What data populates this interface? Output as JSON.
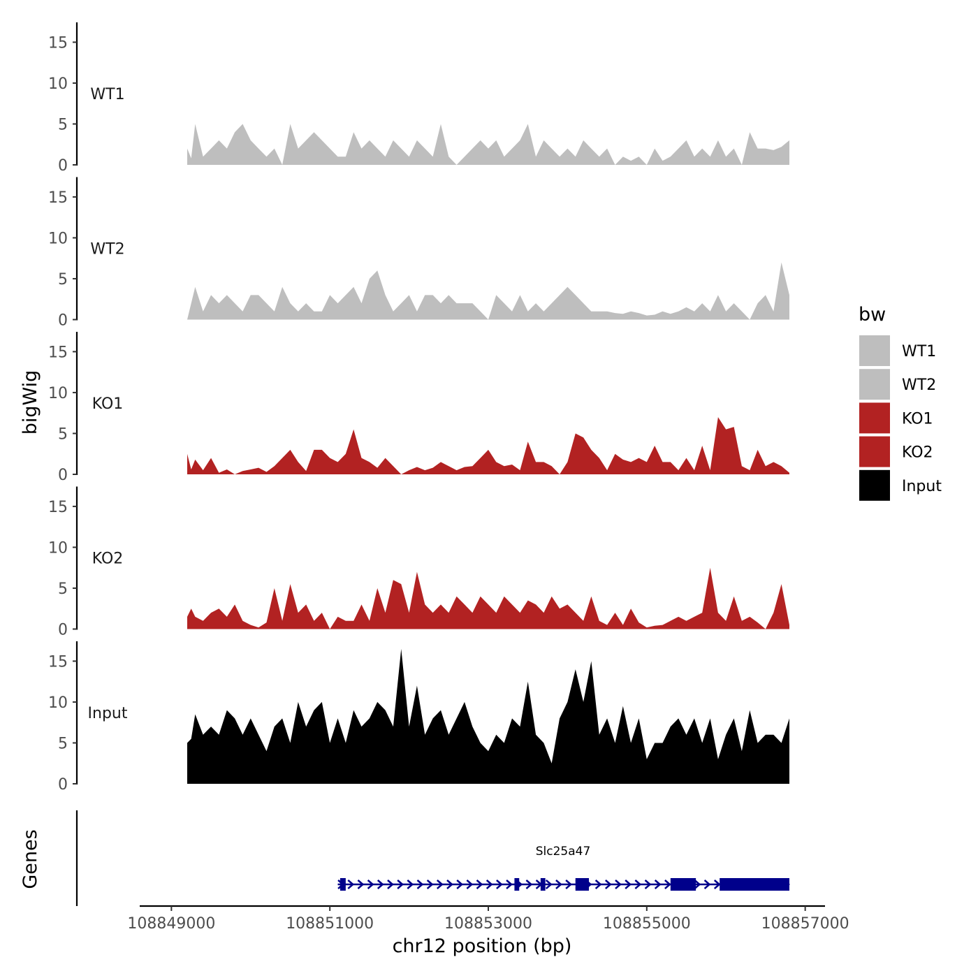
{
  "chart_data": {
    "type": "area",
    "xlabel": "chr12 position (bp)",
    "ylabel": "bigWig",
    "gene_panel_label": "Genes",
    "chromosome": "chr12",
    "xlim": [
      108848600,
      108857250
    ],
    "x_ticks": [
      108849000,
      108851000,
      108853000,
      108855000,
      108857000
    ],
    "x_tick_labels": [
      "108849000",
      "108851000",
      "108853000",
      "108855000",
      "108857000"
    ],
    "ylim": [
      0,
      17
    ],
    "y_ticks": [
      0,
      5,
      10,
      15
    ],
    "y_tick_labels": [
      "0",
      "5",
      "10",
      "15"
    ],
    "legend": {
      "title": "bw",
      "position": "right",
      "entries": [
        {
          "label": "WT1",
          "color": "#bebebe"
        },
        {
          "label": "WT2",
          "color": "#bebebe"
        },
        {
          "label": "KO1",
          "color": "#b22222"
        },
        {
          "label": "KO2",
          "color": "#b22222"
        },
        {
          "label": "Input",
          "color": "#000000"
        }
      ]
    },
    "series": [
      {
        "name": "WT1",
        "color": "#bebebe",
        "x": [
          108849200,
          108849250,
          108849300,
          108849400,
          108849500,
          108849600,
          108849700,
          108849800,
          108849900,
          108850000,
          108850100,
          108850200,
          108850300,
          108850400,
          108850500,
          108850600,
          108850700,
          108850800,
          108850900,
          108851000,
          108851100,
          108851200,
          108851300,
          108851400,
          108851500,
          108851600,
          108851700,
          108851800,
          108851900,
          108852000,
          108852100,
          108852200,
          108852300,
          108852400,
          108852500,
          108852600,
          108852700,
          108852800,
          108852900,
          108853000,
          108853100,
          108853200,
          108853300,
          108853400,
          108853500,
          108853600,
          108853700,
          108853800,
          108853900,
          108854000,
          108854100,
          108854200,
          108854300,
          108854400,
          108854500,
          108854600,
          108854700,
          108854800,
          108854900,
          108855000,
          108855100,
          108855200,
          108855300,
          108855400,
          108855500,
          108855600,
          108855700,
          108855800,
          108855900,
          108856000,
          108856100,
          108856200,
          108856300,
          108856400,
          108856500,
          108856600,
          108856700,
          108856800
        ],
        "values": [
          2,
          0.8,
          5,
          1,
          2,
          3,
          2,
          4,
          5,
          3,
          2,
          1,
          2,
          0,
          5,
          2,
          3,
          4,
          3,
          2,
          1,
          1,
          4,
          2,
          3,
          2,
          1,
          3,
          2,
          1,
          3,
          2,
          1,
          5,
          1,
          0,
          1,
          2,
          3,
          2,
          3,
          1,
          2,
          3,
          5,
          1,
          3,
          2,
          1,
          2,
          1,
          3,
          2,
          1,
          2,
          0,
          1,
          0.5,
          1,
          0,
          2,
          0.5,
          1,
          2,
          3,
          1,
          2,
          1,
          3,
          1,
          2,
          0,
          4,
          2,
          2,
          1.8,
          2.2,
          3
        ]
      },
      {
        "name": "WT2",
        "color": "#bebebe",
        "x": [
          108849200,
          108849250,
          108849300,
          108849400,
          108849500,
          108849600,
          108849700,
          108849800,
          108849900,
          108850000,
          108850100,
          108850200,
          108850300,
          108850400,
          108850500,
          108850600,
          108850700,
          108850800,
          108850900,
          108851000,
          108851100,
          108851200,
          108851300,
          108851400,
          108851500,
          108851600,
          108851700,
          108851800,
          108851900,
          108852000,
          108852100,
          108852200,
          108852300,
          108852400,
          108852500,
          108852600,
          108852700,
          108852800,
          108852900,
          108853000,
          108853100,
          108853200,
          108853300,
          108853400,
          108853500,
          108853600,
          108853700,
          108853800,
          108853900,
          108854000,
          108854100,
          108854200,
          108854300,
          108854400,
          108854500,
          108854600,
          108854700,
          108854800,
          108854900,
          108855000,
          108855100,
          108855200,
          108855300,
          108855400,
          108855500,
          108855600,
          108855700,
          108855800,
          108855900,
          108856000,
          108856100,
          108856200,
          108856300,
          108856400,
          108856500,
          108856600,
          108856700,
          108856800
        ],
        "values": [
          0,
          2,
          4,
          1,
          3,
          2,
          3,
          2,
          1,
          3,
          3,
          2,
          1,
          4,
          2,
          1,
          2,
          1,
          1,
          3,
          2,
          3,
          4,
          2,
          5,
          6,
          3,
          1,
          2,
          3,
          1,
          3,
          3,
          2,
          3,
          2,
          2,
          2,
          1,
          0,
          3,
          2,
          1,
          3,
          1,
          2,
          1,
          2,
          3,
          4,
          3,
          2,
          1,
          1,
          1,
          0.8,
          0.7,
          1,
          0.8,
          0.5,
          0.6,
          1,
          0.7,
          1,
          1.5,
          1,
          2,
          1,
          3,
          1,
          2,
          1,
          0,
          2,
          3,
          1,
          7,
          3
        ]
      },
      {
        "name": "KO1",
        "color": "#b22222",
        "x": [
          108849200,
          108849250,
          108849300,
          108849400,
          108849500,
          108849600,
          108849700,
          108849800,
          108849900,
          108850000,
          108850100,
          108850200,
          108850300,
          108850400,
          108850500,
          108850600,
          108850700,
          108850800,
          108850900,
          108851000,
          108851100,
          108851200,
          108851300,
          108851400,
          108851500,
          108851600,
          108851700,
          108851800,
          108851900,
          108852000,
          108852100,
          108852200,
          108852300,
          108852400,
          108852500,
          108852600,
          108852700,
          108852800,
          108852900,
          108853000,
          108853100,
          108853200,
          108853300,
          108853400,
          108853500,
          108853600,
          108853700,
          108853800,
          108853900,
          108854000,
          108854100,
          108854200,
          108854300,
          108854400,
          108854500,
          108854600,
          108854700,
          108854800,
          108854900,
          108855000,
          108855100,
          108855200,
          108855300,
          108855400,
          108855500,
          108855600,
          108855700,
          108855800,
          108855900,
          108856000,
          108856100,
          108856200,
          108856300,
          108856400,
          108856500,
          108856600,
          108856700,
          108856800
        ],
        "values": [
          2.5,
          0.6,
          1.8,
          0.5,
          2,
          0.2,
          0.6,
          0,
          0.4,
          0.6,
          0.8,
          0.3,
          1,
          2,
          3,
          1.5,
          0.4,
          3,
          3,
          2,
          1.5,
          2.5,
          5.5,
          2,
          1.5,
          0.8,
          2,
          1,
          0,
          0.5,
          0.9,
          0.5,
          0.8,
          1.5,
          1,
          0.5,
          0.9,
          1,
          2,
          3,
          1.5,
          1,
          1.2,
          0.5,
          4,
          1.5,
          1.5,
          1,
          0,
          1.5,
          5,
          4.5,
          3,
          2,
          0.5,
          2.5,
          1.8,
          1.5,
          2,
          1.5,
          3.5,
          1.5,
          1.5,
          0.5,
          2,
          0.5,
          3.5,
          0.5,
          7,
          5.5,
          5.8,
          1,
          0.5,
          3,
          1,
          1.5,
          1,
          0.2
        ]
      },
      {
        "name": "KO2",
        "color": "#b22222",
        "x": [
          108849200,
          108849250,
          108849300,
          108849400,
          108849500,
          108849600,
          108849700,
          108849800,
          108849900,
          108850000,
          108850100,
          108850200,
          108850300,
          108850400,
          108850500,
          108850600,
          108850700,
          108850800,
          108850900,
          108851000,
          108851100,
          108851200,
          108851300,
          108851400,
          108851500,
          108851600,
          108851700,
          108851800,
          108851900,
          108852000,
          108852100,
          108852200,
          108852300,
          108852400,
          108852500,
          108852600,
          108852700,
          108852800,
          108852900,
          108853000,
          108853100,
          108853200,
          108853300,
          108853400,
          108853500,
          108853600,
          108853700,
          108853800,
          108853900,
          108854000,
          108854100,
          108854200,
          108854300,
          108854400,
          108854500,
          108854600,
          108854700,
          108854800,
          108854900,
          108855000,
          108855100,
          108855200,
          108855300,
          108855400,
          108855500,
          108855600,
          108855700,
          108855800,
          108855900,
          108856000,
          108856100,
          108856200,
          108856300,
          108856400,
          108856500,
          108856600,
          108856700,
          108856800
        ],
        "values": [
          1.5,
          2.5,
          1.5,
          1,
          2,
          2.5,
          1.5,
          3,
          1,
          0.5,
          0.2,
          0.8,
          5,
          1,
          5.5,
          2,
          3,
          1,
          2,
          0,
          1.5,
          1,
          1,
          3,
          1,
          5,
          2,
          6,
          5.5,
          2,
          7,
          3,
          2,
          3,
          2,
          4,
          3,
          2,
          4,
          3,
          2,
          4,
          3,
          2,
          3.5,
          3,
          2,
          4,
          2.5,
          3,
          2,
          1,
          4,
          1,
          0.5,
          2,
          0.5,
          2.5,
          0.8,
          0.2,
          0.4,
          0.5,
          1,
          1.5,
          1,
          1.5,
          2,
          7.5,
          2,
          1,
          4,
          1,
          1.5,
          0.8,
          0,
          2,
          5.5,
          0.5
        ]
      },
      {
        "name": "Input",
        "color": "#000000",
        "x": [
          108849200,
          108849250,
          108849300,
          108849400,
          108849500,
          108849600,
          108849700,
          108849800,
          108849900,
          108850000,
          108850100,
          108850200,
          108850300,
          108850400,
          108850500,
          108850600,
          108850700,
          108850800,
          108850900,
          108851000,
          108851100,
          108851200,
          108851300,
          108851400,
          108851500,
          108851600,
          108851700,
          108851800,
          108851900,
          108852000,
          108852100,
          108852200,
          108852300,
          108852400,
          108852500,
          108852600,
          108852700,
          108852800,
          108852900,
          108853000,
          108853100,
          108853200,
          108853300,
          108853400,
          108853500,
          108853600,
          108853700,
          108853800,
          108853900,
          108854000,
          108854100,
          108854200,
          108854300,
          108854400,
          108854500,
          108854600,
          108854700,
          108854800,
          108854900,
          108855000,
          108855100,
          108855200,
          108855300,
          108855400,
          108855500,
          108855600,
          108855700,
          108855800,
          108855900,
          108856000,
          108856100,
          108856200,
          108856300,
          108856400,
          108856500,
          108856600,
          108856700,
          108856800
        ],
        "values": [
          5,
          5.5,
          8.5,
          6,
          7,
          6,
          9,
          8,
          6,
          8,
          6,
          4,
          7,
          8,
          5,
          10,
          7,
          9,
          10,
          5,
          8,
          5,
          9,
          7,
          8,
          10,
          9,
          7,
          16.5,
          7,
          12,
          6,
          8,
          9,
          6,
          8,
          10,
          7,
          5,
          4,
          6,
          5,
          8,
          7,
          12.5,
          6,
          5,
          2.5,
          8,
          10,
          14,
          10,
          15,
          6,
          8,
          5,
          9.5,
          5,
          8,
          3,
          5,
          5,
          7,
          8,
          6,
          8,
          5,
          8,
          3,
          6,
          8,
          4,
          9,
          5,
          6,
          6,
          5,
          8
        ]
      }
    ],
    "gene": {
      "name": "Slc25a47",
      "strand": "+",
      "color": "#00008b",
      "start": 108851100,
      "end": 108856800,
      "exons": [
        [
          108851130,
          108851200
        ],
        [
          108853330,
          108853390
        ],
        [
          108853660,
          108853720
        ],
        [
          108854100,
          108854270
        ],
        [
          108855300,
          108855620
        ],
        [
          108855920,
          108856800
        ]
      ]
    }
  }
}
